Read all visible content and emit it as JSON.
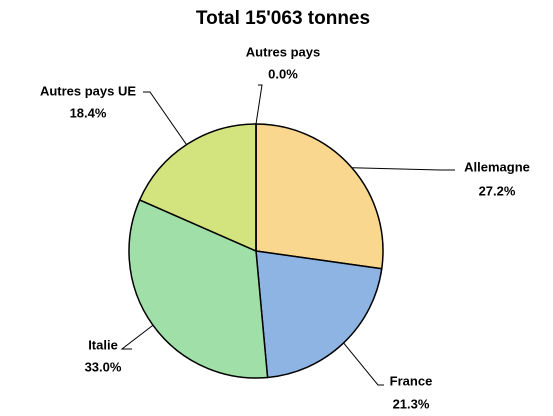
{
  "chart_data": {
    "type": "pie",
    "title": "Total 15'063 tonnes",
    "categories": [
      "Allemagne",
      "France",
      "Italie",
      "Autres pays UE",
      "Autres pays"
    ],
    "values": [
      27.2,
      21.3,
      33.0,
      18.4,
      0.0
    ],
    "value_labels": [
      "27.2%",
      "21.3%",
      "33.0%",
      "18.4%",
      "0.0%"
    ],
    "colors": [
      "#f9d78f",
      "#8eb4e3",
      "#a0e0a8",
      "#d3e47f",
      "#bfbfbf"
    ]
  }
}
